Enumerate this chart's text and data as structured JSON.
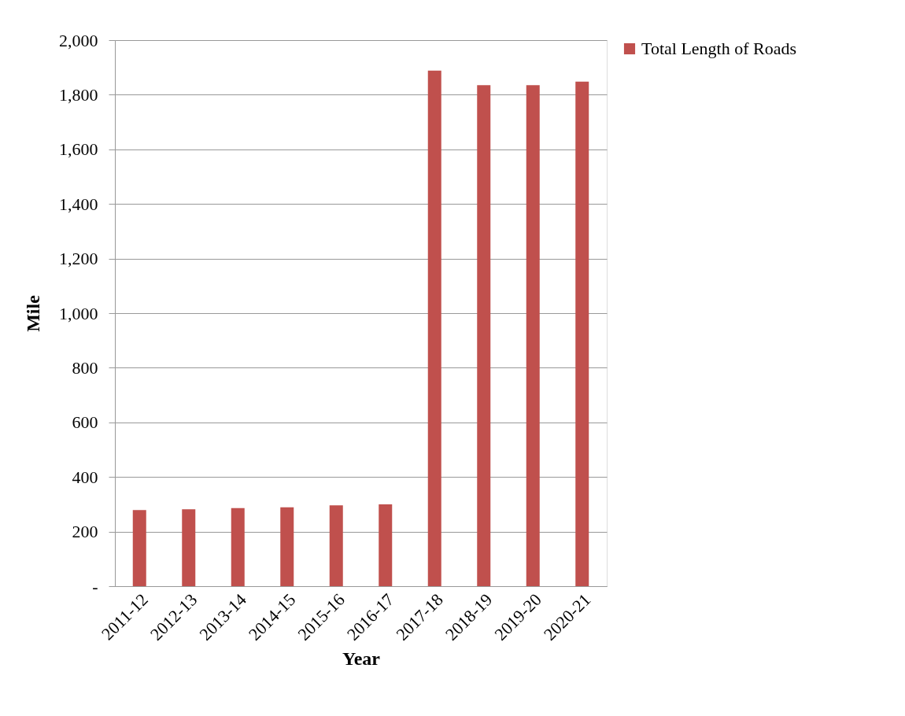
{
  "chart_data": {
    "type": "bar",
    "xlabel": "Year",
    "ylabel": "Mile",
    "categories": [
      "2011-12",
      "2012-13",
      "2013-14",
      "2014-15",
      "2015-16",
      "2016-17",
      "2017-18",
      "2018-19",
      "2019-20",
      "2020-21"
    ],
    "series": [
      {
        "name": "Total Length of Roads",
        "color": "#c0504d",
        "values": [
          279,
          282,
          286,
          289,
          296,
          300,
          1888,
          1835,
          1835,
          1848
        ]
      }
    ],
    "ylim": [
      0,
      2000
    ],
    "yticks": [
      {
        "value": 0,
        "label": "-"
      },
      {
        "value": 200,
        "label": "200"
      },
      {
        "value": 400,
        "label": "400"
      },
      {
        "value": 600,
        "label": "600"
      },
      {
        "value": 800,
        "label": "800"
      },
      {
        "value": 1000,
        "label": "1,000"
      },
      {
        "value": 1200,
        "label": "1,200"
      },
      {
        "value": 1400,
        "label": "1,400"
      },
      {
        "value": 1600,
        "label": "1,600"
      },
      {
        "value": 1800,
        "label": "1,800"
      },
      {
        "value": 2000,
        "label": "2,000"
      }
    ],
    "grid": "y",
    "legend": "right"
  }
}
